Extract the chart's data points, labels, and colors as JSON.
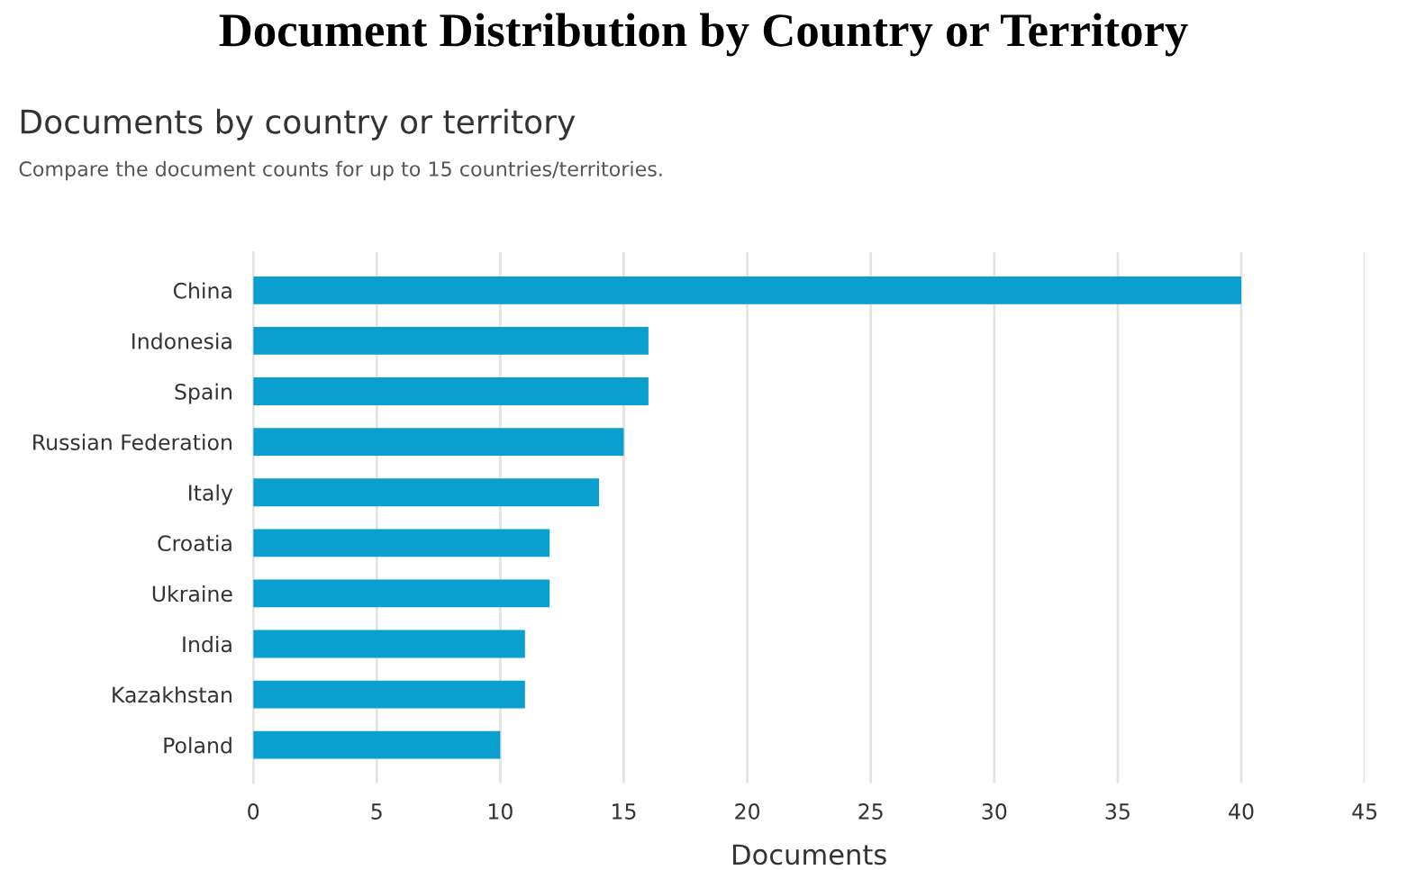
{
  "chart_data": {
    "type": "bar",
    "orientation": "horizontal",
    "title": "Document Distribution by Country or Territory",
    "subtitle": "Documents by country or territory",
    "annotations": [
      "Compare the document counts for up to 15 countries/territories."
    ],
    "categories": [
      "China",
      "Indonesia",
      "Spain",
      "Russian Federation",
      "Italy",
      "Croatia",
      "Ukraine",
      "India",
      "Kazakhstan",
      "Poland"
    ],
    "values": [
      40,
      16,
      16,
      15,
      14,
      12,
      12,
      11,
      11,
      10
    ],
    "color": "#0a9fcf",
    "xlabel": "Documents",
    "xlim": [
      0,
      45
    ],
    "xticks": [
      0,
      5,
      10,
      15,
      20,
      25,
      30,
      35,
      40,
      45
    ],
    "grid": "x",
    "legend": false
  }
}
